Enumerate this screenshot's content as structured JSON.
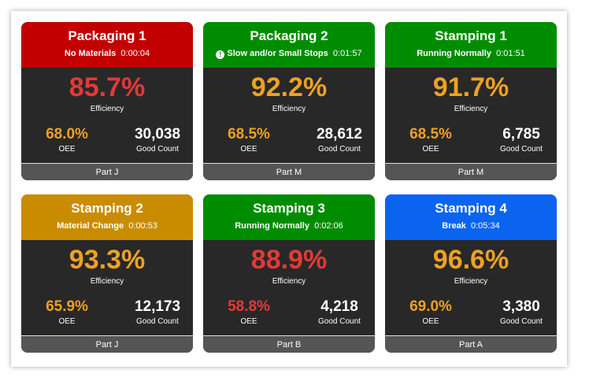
{
  "cards": [
    {
      "name": "Packaging 1",
      "status": "No Materials",
      "timer": "0:00:04",
      "color": "#c20000",
      "efficiency": "85.7%",
      "efficiency_color": "#e33a36",
      "efficiency_label": "Efficiency",
      "oee": "68.0%",
      "oee_color": "#eea125",
      "oee_label": "OEE",
      "good_count": "30,038",
      "good_count_label": "Good Count",
      "part": "Part J"
    },
    {
      "name": "Packaging 2",
      "icon": "!",
      "status": "Slow and/or Small Stops",
      "timer": "0:01:57",
      "color": "#008c00",
      "efficiency": "92.2%",
      "efficiency_color": "#eea125",
      "efficiency_label": "Efficiency",
      "oee": "68.5%",
      "oee_color": "#eea125",
      "oee_label": "OEE",
      "good_count": "28,612",
      "good_count_label": "Good Count",
      "part": "Part M"
    },
    {
      "name": "Stamping 1",
      "status": "Running Normally",
      "timer": "0:01:51",
      "color": "#008c00",
      "efficiency": "91.7%",
      "efficiency_color": "#eea125",
      "efficiency_label": "Efficiency",
      "oee": "68.5%",
      "oee_color": "#eea125",
      "oee_label": "OEE",
      "good_count": "6,785",
      "good_count_label": "Good Count",
      "part": "Part M"
    },
    {
      "name": "Stamping 2",
      "status": "Material Change",
      "timer": "0:00:53",
      "color": "#c98c00",
      "efficiency": "93.3%",
      "efficiency_color": "#eea125",
      "efficiency_label": "Efficiency",
      "oee": "65.9%",
      "oee_color": "#eea125",
      "oee_label": "OEE",
      "good_count": "12,173",
      "good_count_label": "Good Count",
      "part": "Part J"
    },
    {
      "name": "Stamping 3",
      "status": "Running Normally",
      "timer": "0:02:06",
      "color": "#008c00",
      "efficiency": "88.9%",
      "efficiency_color": "#e33a36",
      "efficiency_label": "Efficiency",
      "oee": "58.8%",
      "oee_color": "#e33a36",
      "oee_label": "OEE",
      "good_count": "4,218",
      "good_count_label": "Good Count",
      "part": "Part B"
    },
    {
      "name": "Stamping 4",
      "status": "Break",
      "timer": "0:05:34",
      "color": "#0a64f0",
      "efficiency": "96.6%",
      "efficiency_color": "#eea125",
      "efficiency_label": "Efficiency",
      "oee": "69.0%",
      "oee_color": "#eea125",
      "oee_label": "OEE",
      "good_count": "3,380",
      "good_count_label": "Good Count",
      "part": "Part A"
    }
  ]
}
